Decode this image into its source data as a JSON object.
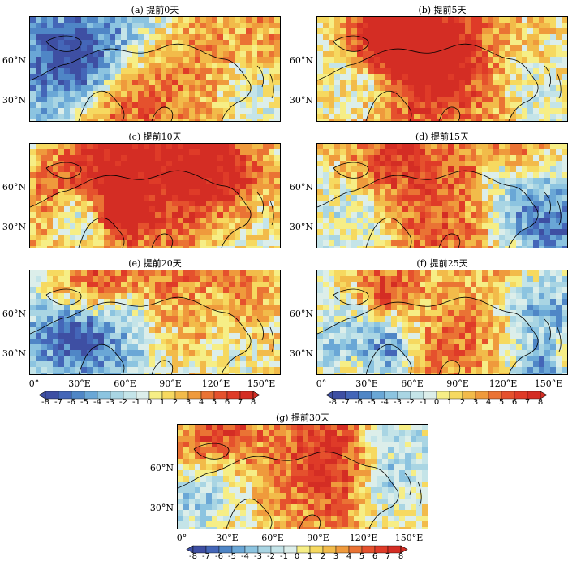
{
  "panels": [
    {
      "title": "(a) 提前0天",
      "warm": 0.38,
      "seed": 11
    },
    {
      "title": "(b) 提前5天",
      "warm": 0.52,
      "seed": 23
    },
    {
      "title": "(c) 提前10天",
      "warm": 0.58,
      "seed": 37
    },
    {
      "title": "(d) 提前15天",
      "warm": 0.58,
      "seed": 41
    },
    {
      "title": "(e) 提前20天",
      "warm": 0.62,
      "seed": 53
    },
    {
      "title": "(f) 提前25天",
      "warm": 0.6,
      "seed": 67
    },
    {
      "title": "(g) 提前30天",
      "warm": 0.62,
      "seed": 79
    }
  ],
  "lat_labels": [
    "60°N",
    "30°N"
  ],
  "lon_labels": [
    "0°",
    "30°E",
    "60°E",
    "90°E",
    "120°E",
    "150°E"
  ],
  "colorbar": {
    "labels": [
      "-8",
      "-7",
      "-6",
      "-5",
      "-4",
      "-3",
      "-2",
      "-1",
      "0",
      "1",
      "2",
      "3",
      "4",
      "5",
      "6",
      "7",
      "8"
    ],
    "colors": [
      "#3e4fa3",
      "#4466b8",
      "#4f86c6",
      "#6aa7d6",
      "#8cc4e0",
      "#a9d5e3",
      "#c4e4e8",
      "#dceeea",
      "#f6ee86",
      "#f6d960",
      "#f2bb4a",
      "#ef9a3c",
      "#ea7334",
      "#e5512d",
      "#df3b28",
      "#d42d24"
    ]
  }
}
